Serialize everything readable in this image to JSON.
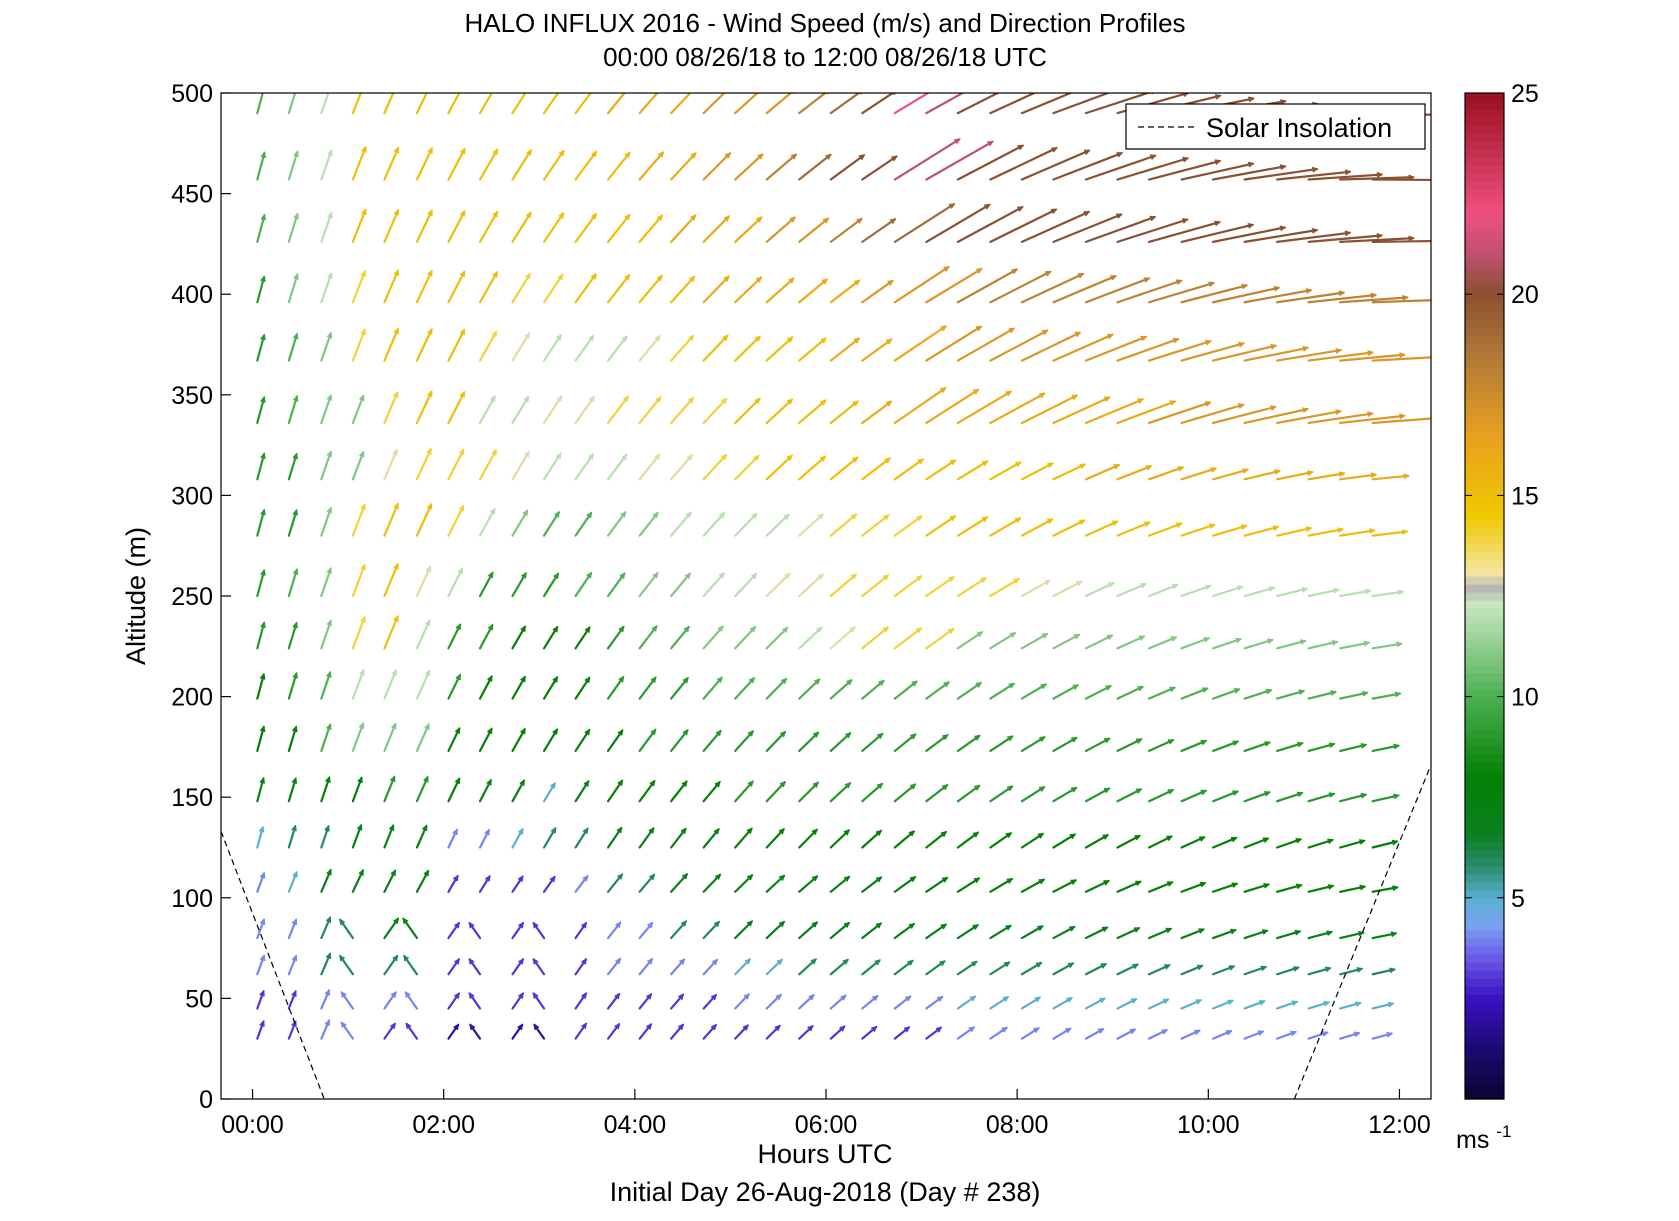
{
  "chart_data": {
    "type": "quiver",
    "title": "HALO INFLUX 2016 - Wind Speed (m/s) and Direction Profiles",
    "subtitle": "00:00 08/26/18 to 12:00 08/26/18  UTC",
    "xlabel": "Hours UTC",
    "xlabel2": "Initial Day 26-Aug-2018 (Day # 238)",
    "ylabel": "Altitude (m)",
    "xlim": [
      -0.33,
      12.33
    ],
    "ylim": [
      0,
      500
    ],
    "x_ticks": [
      0,
      2,
      4,
      6,
      8,
      10,
      12
    ],
    "x_tick_labels": [
      "00:00",
      "02:00",
      "04:00",
      "06:00",
      "08:00",
      "10:00",
      "12:00"
    ],
    "y_ticks": [
      0,
      50,
      100,
      150,
      200,
      250,
      300,
      350,
      400,
      450,
      500
    ],
    "y_tick_labels": [
      "0",
      "50",
      "100",
      "150",
      "200",
      "250",
      "300",
      "350",
      "400",
      "450",
      "500"
    ],
    "grid": false,
    "legend": {
      "position": "top-right",
      "entries": [
        {
          "label": "Solar Insolation",
          "style": "dashed",
          "color": "#000000"
        }
      ]
    },
    "solar_insolation": {
      "morning": [
        {
          "x": -0.33,
          "y": 133
        },
        {
          "x": 0.75,
          "y": 0
        }
      ],
      "evening": [
        {
          "x": 10.9,
          "y": 0
        },
        {
          "x": 12.33,
          "y": 166
        }
      ]
    },
    "colorbar": {
      "label": "ms",
      "label_superscript": "-1",
      "range": [
        0,
        25
      ],
      "ticks": [
        5,
        10,
        15,
        20,
        25
      ],
      "tick_labels": [
        "5",
        "10",
        "15",
        "20",
        "25"
      ],
      "colormap": [
        {
          "v": 0.0,
          "c": "#0a0530"
        },
        {
          "v": 1.2,
          "c": "#1c0a70"
        },
        {
          "v": 2.5,
          "c": "#3a10c0"
        },
        {
          "v": 3.5,
          "c": "#6a58e8"
        },
        {
          "v": 4.3,
          "c": "#7aa0f2"
        },
        {
          "v": 5.0,
          "c": "#5ab0d0"
        },
        {
          "v": 5.8,
          "c": "#2a8a6a"
        },
        {
          "v": 6.6,
          "c": "#0a8020"
        },
        {
          "v": 8.0,
          "c": "#048004"
        },
        {
          "v": 10.0,
          "c": "#4caf50"
        },
        {
          "v": 12.3,
          "c": "#c8e6c0"
        },
        {
          "v": 12.7,
          "c": "#b8b8b8"
        },
        {
          "v": 13.1,
          "c": "#f4e4a0"
        },
        {
          "v": 14.5,
          "c": "#f0c800"
        },
        {
          "v": 16.5,
          "c": "#e8a020"
        },
        {
          "v": 18.5,
          "c": "#b07838"
        },
        {
          "v": 20.0,
          "c": "#8a5030"
        },
        {
          "v": 21.0,
          "c": "#c05070"
        },
        {
          "v": 22.0,
          "c": "#f05080"
        },
        {
          "v": 25.0,
          "c": "#9a1020"
        }
      ]
    },
    "vector_times": [
      0.05,
      0.38,
      0.72,
      1.05,
      1.38,
      1.72,
      2.05,
      2.38,
      2.72,
      3.05,
      3.38,
      3.72,
      4.05,
      4.38,
      4.72,
      5.05,
      5.38,
      5.72,
      6.05,
      6.38,
      6.72,
      7.05,
      7.38,
      7.72,
      8.05,
      8.38,
      8.72,
      9.05,
      9.38,
      9.72,
      10.05,
      10.38,
      10.72,
      11.05,
      11.38,
      11.72
    ],
    "altitudes": [
      30,
      45,
      62,
      80,
      103,
      125,
      148,
      173,
      199,
      224,
      250,
      280,
      308,
      336,
      367,
      396,
      426,
      457,
      490
    ],
    "speed_by_level": [
      [
        3,
        3,
        4,
        4,
        3,
        3,
        2,
        2,
        2,
        2,
        3,
        3,
        3,
        3,
        3,
        3,
        3,
        3,
        3,
        3,
        3,
        3,
        4,
        4,
        4,
        4,
        4,
        4,
        4,
        4,
        4,
        4,
        4,
        4,
        4,
        4
      ],
      [
        3,
        3,
        4,
        4,
        4,
        4,
        3,
        3,
        3,
        3,
        3,
        3,
        3,
        3,
        3,
        4,
        4,
        4,
        4,
        4,
        4,
        4,
        5,
        5,
        5,
        5,
        5,
        5,
        5,
        5,
        5,
        5,
        5,
        5,
        5,
        5
      ],
      [
        4,
        4,
        6,
        6,
        6,
        6,
        3,
        3,
        3,
        3,
        3,
        4,
        4,
        4,
        4,
        5,
        5,
        6,
        6,
        6,
        6,
        6,
        6,
        6,
        6,
        6,
        6,
        6,
        6,
        6,
        6,
        6,
        6,
        6,
        6,
        6
      ],
      [
        4,
        4,
        6,
        6,
        7,
        7,
        3,
        3,
        3,
        3,
        3,
        4,
        4,
        6,
        6,
        7,
        7,
        7,
        7,
        7,
        7,
        7,
        7,
        7,
        7,
        7,
        7,
        7,
        7,
        7,
        7,
        7,
        7,
        7,
        7,
        7
      ],
      [
        4,
        5,
        7,
        7,
        7,
        7,
        3,
        3,
        3,
        3,
        4,
        6,
        6,
        7,
        7,
        7,
        7,
        7,
        7,
        7,
        8,
        8,
        8,
        8,
        8,
        8,
        8,
        8,
        8,
        8,
        8,
        8,
        8,
        8,
        8,
        8
      ],
      [
        5,
        6,
        6,
        7,
        7,
        7,
        4,
        4,
        5,
        6,
        6,
        7,
        7,
        7,
        7,
        8,
        8,
        8,
        8,
        8,
        8,
        8,
        8,
        8,
        8,
        8,
        8,
        8,
        8,
        8,
        8,
        8,
        8,
        8,
        8,
        8
      ],
      [
        7,
        7,
        8,
        8,
        9,
        9,
        8,
        7,
        7,
        5,
        7,
        8,
        8,
        8,
        8,
        9,
        9,
        9,
        9,
        9,
        9,
        9,
        9,
        9,
        9,
        9,
        9,
        9,
        9,
        9,
        9,
        9,
        9,
        9,
        9,
        9
      ],
      [
        8,
        8,
        10,
        11,
        11,
        11,
        8,
        8,
        8,
        8,
        8,
        8,
        9,
        9,
        9,
        9,
        9,
        9,
        9,
        9,
        9,
        9,
        9,
        9,
        9,
        9,
        9,
        9,
        9,
        9,
        9,
        9,
        9,
        9,
        9,
        9
      ],
      [
        8,
        9,
        10,
        12,
        12,
        12,
        9,
        8,
        8,
        8,
        8,
        9,
        9,
        9,
        10,
        10,
        10,
        10,
        10,
        10,
        10,
        10,
        10,
        10,
        10,
        10,
        10,
        10,
        10,
        10,
        10,
        10,
        10,
        10,
        10,
        10
      ],
      [
        9,
        9,
        11,
        14,
        15,
        12,
        9,
        9,
        8,
        8,
        8,
        9,
        10,
        10,
        11,
        11,
        11,
        12,
        13,
        14,
        14,
        14,
        11,
        11,
        11,
        11,
        11,
        11,
        11,
        11,
        11,
        11,
        11,
        11,
        11,
        11
      ],
      [
        9,
        10,
        11,
        14,
        15,
        13,
        12,
        9,
        9,
        9,
        10,
        10,
        11,
        11,
        12,
        12,
        13,
        13,
        14,
        14,
        14,
        14,
        14,
        14,
        13,
        13,
        12,
        12,
        12,
        12,
        12,
        12,
        12,
        12,
        12,
        12
      ],
      [
        9,
        9,
        11,
        14,
        15,
        15,
        14,
        12,
        11,
        10,
        10,
        11,
        11,
        12,
        12,
        12,
        12,
        13,
        14,
        14,
        14,
        15,
        15,
        15,
        15,
        15,
        15,
        15,
        15,
        15,
        15,
        15,
        15,
        15,
        15,
        15
      ],
      [
        9,
        9,
        11,
        11,
        13,
        14,
        14,
        14,
        13,
        12,
        12,
        12,
        13,
        13,
        14,
        14,
        15,
        15,
        15,
        15,
        15,
        15,
        15,
        15,
        15,
        15,
        16,
        16,
        16,
        16,
        16,
        16,
        16,
        16,
        16,
        16
      ],
      [
        9,
        10,
        11,
        11,
        14,
        15,
        15,
        12,
        12,
        13,
        13,
        14,
        14,
        14,
        14,
        15,
        15,
        15,
        15,
        16,
        16,
        16,
        16,
        16,
        16,
        16,
        16,
        16,
        17,
        17,
        17,
        17,
        17,
        17,
        17,
        17
      ],
      [
        9,
        10,
        11,
        14,
        15,
        15,
        15,
        14,
        13,
        12,
        12,
        12,
        13,
        14,
        15,
        15,
        15,
        15,
        16,
        16,
        16,
        17,
        17,
        17,
        17,
        17,
        17,
        17,
        17,
        17,
        17,
        17,
        17,
        17,
        17,
        17
      ],
      [
        9,
        11,
        12,
        14,
        15,
        15,
        15,
        15,
        14,
        14,
        15,
        15,
        15,
        15,
        16,
        16,
        16,
        16,
        16,
        17,
        17,
        17,
        18,
        18,
        18,
        18,
        18,
        18,
        18,
        18,
        18,
        18,
        18,
        18,
        18,
        18
      ],
      [
        10,
        11,
        12,
        15,
        15,
        15,
        15,
        15,
        15,
        15,
        15,
        15,
        15,
        16,
        16,
        16,
        17,
        17,
        18,
        19,
        19,
        20,
        20,
        20,
        20,
        20,
        20,
        20,
        20,
        20,
        20,
        20,
        20,
        20,
        20,
        20
      ],
      [
        10,
        11,
        12,
        15,
        15,
        15,
        15,
        15,
        15,
        15,
        15,
        15,
        16,
        16,
        17,
        17,
        18,
        19,
        20,
        20,
        21,
        21,
        20,
        20,
        20,
        20,
        20,
        20,
        20,
        20,
        20,
        20,
        20,
        20,
        20,
        20
      ],
      [
        10,
        11,
        12,
        15,
        15,
        15,
        15,
        15,
        15,
        15,
        15,
        16,
        16,
        16,
        17,
        17,
        17,
        18,
        19,
        20,
        22,
        21,
        20,
        20,
        20,
        20,
        20,
        20,
        20,
        20,
        20,
        20,
        20,
        20,
        20,
        20
      ]
    ]
  }
}
